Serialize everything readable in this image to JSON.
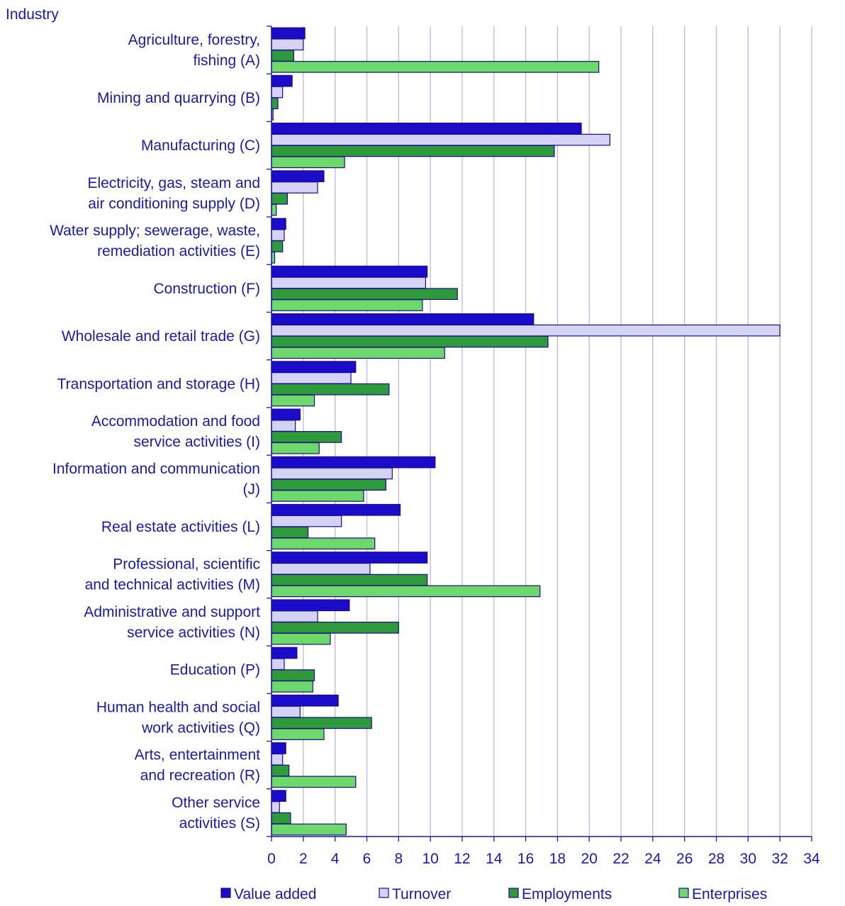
{
  "chart_data": {
    "type": "bar",
    "orientation": "horizontal",
    "title": "",
    "ylabel": "Industry",
    "xlabel": "",
    "xlim": [
      0,
      34
    ],
    "x_ticks": [
      0,
      2,
      4,
      6,
      8,
      10,
      12,
      14,
      16,
      18,
      20,
      22,
      24,
      26,
      28,
      30,
      32,
      34
    ],
    "grid": true,
    "legend_position": "bottom",
    "categories": [
      [
        "Agriculture, forestry,",
        "fishing (A)"
      ],
      [
        "Mining and quarrying (B)"
      ],
      [
        "Manufacturing (C)"
      ],
      [
        "Electricity, gas, steam and",
        "air conditioning supply (D)"
      ],
      [
        "Water supply; sewerage, waste,",
        "remediation activities (E)"
      ],
      [
        "Construction (F)"
      ],
      [
        "Wholesale and retail trade (G)"
      ],
      [
        "Transportation and storage (H)"
      ],
      [
        "Accommodation and food",
        "service activities (I)"
      ],
      [
        "Information and communication",
        "(J)"
      ],
      [
        "Real estate activities (L)"
      ],
      [
        "Professional, scientific",
        "and technical activities (M)"
      ],
      [
        "Administrative and support",
        "service activities (N)"
      ],
      [
        "Education (P)"
      ],
      [
        "Human health and social",
        "work activities (Q)"
      ],
      [
        "Arts, entertainment",
        "and recreation (R)"
      ],
      [
        "Other service",
        "activities (S)"
      ]
    ],
    "series": [
      {
        "name": "Value added",
        "color": "#1a0cc8",
        "values": [
          2.1,
          1.3,
          19.5,
          3.3,
          0.9,
          9.8,
          16.5,
          5.3,
          1.8,
          10.3,
          8.1,
          9.8,
          4.9,
          1.6,
          4.2,
          0.9,
          0.9
        ]
      },
      {
        "name": "Turnover",
        "color": "#d4d2f5",
        "values": [
          2.0,
          0.7,
          21.3,
          2.9,
          0.8,
          9.7,
          32.0,
          5.0,
          1.5,
          7.6,
          4.4,
          6.2,
          2.9,
          0.8,
          1.8,
          0.7,
          0.5
        ]
      },
      {
        "name": "Employments",
        "color": "#2f9a3c",
        "values": [
          1.4,
          0.4,
          17.8,
          1.0,
          0.7,
          11.7,
          17.4,
          7.4,
          4.4,
          7.2,
          2.3,
          9.8,
          8.0,
          2.7,
          6.3,
          1.1,
          1.2
        ]
      },
      {
        "name": "Enterprises",
        "color": "#6ed96b",
        "values": [
          20.6,
          0.1,
          4.6,
          0.3,
          0.2,
          9.5,
          10.9,
          2.7,
          3.0,
          5.8,
          6.5,
          16.9,
          3.7,
          2.6,
          3.3,
          5.3,
          4.7
        ]
      }
    ]
  }
}
